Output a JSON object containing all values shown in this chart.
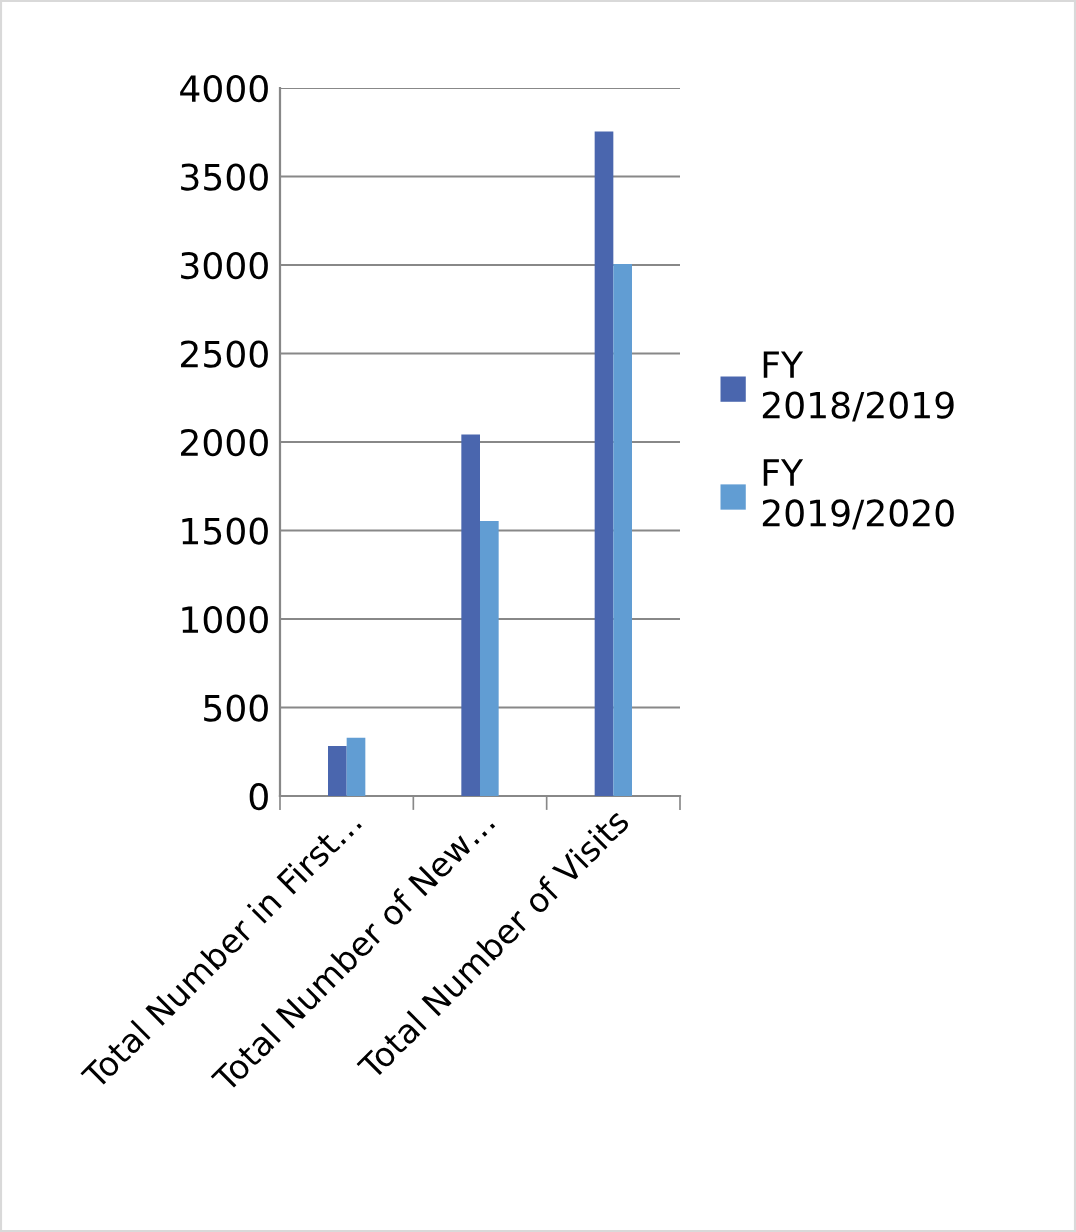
{
  "chart_data": {
    "type": "bar",
    "categories": [
      "Total Number in First…",
      "Total Number of New…",
      "Total Number of Visits"
    ],
    "series": [
      {
        "name": "FY 2018/2019",
        "color": "#4a66ae",
        "values": [
          283,
          2042,
          3754
        ]
      },
      {
        "name": "FY 2019/2020",
        "color": "#619dd3",
        "values": [
          329,
          1554,
          3006
        ]
      }
    ],
    "ylim": [
      0,
      4000
    ],
    "yticks": [
      0,
      500,
      1000,
      1500,
      2000,
      2500,
      3000,
      3500,
      4000
    ],
    "grid": "y",
    "legend": "right"
  }
}
